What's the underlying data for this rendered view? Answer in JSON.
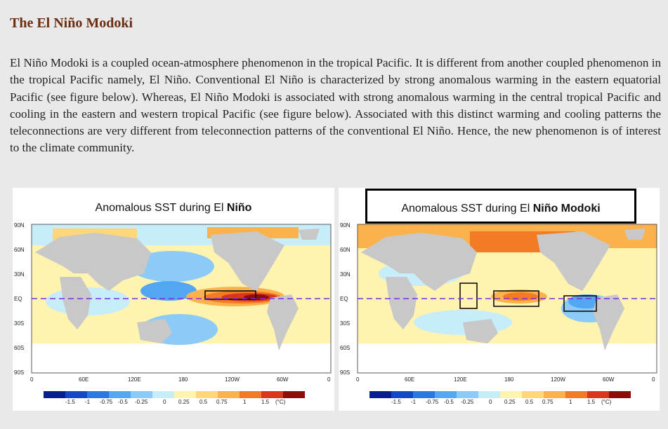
{
  "article": {
    "title": "The El Niño Modoki",
    "paragraph": "El Niño Modoki is a coupled ocean-atmosphere phenomenon in the tropical Pacific. It is different from another coupled phenomenon in the tropical Pacific namely, El Niño. Conventional El Niño is characterized by strong anomalous warming in the eastern equatorial Pacific (see figure below). Whereas, El Niño Modoki is associated with strong anomalous warming in the central tropical Pacific and cooling in the eastern and western tropical Pacific (see figure below). Associated with this distinct warming and cooling patterns the teleconnections are very different from teleconnection patterns of the conventional El Niño. Hence, the new phenomenon is of interest to the climate community."
  },
  "figures": [
    {
      "title_prefix": "Anomalous SST during ",
      "title_bold_plain": "El ",
      "title_bold": "Niño"
    },
    {
      "title_prefix": "Anomalous SST during ",
      "title_bold_plain": "El ",
      "title_bold": "Niño Modoki"
    }
  ],
  "map_axes": {
    "lat_labels": [
      "90N",
      "60N",
      "30N",
      "EQ",
      "30S",
      "60S",
      "90S"
    ],
    "lon_labels": [
      "0",
      "60E",
      "120E",
      "180",
      "120W",
      "60W",
      "0"
    ]
  },
  "colorbar": {
    "labels": [
      "-1.5",
      "-1",
      "-0.75",
      "-0.5",
      "-0.25",
      "0",
      "0.25",
      "0.5",
      "0.75",
      "1",
      "1.5"
    ],
    "unit": "(°C)",
    "colors": [
      "#0a1f8f",
      "#1448c8",
      "#2a78e6",
      "#52a6f2",
      "#8ccbf7",
      "#c7ecfa",
      "#fff3b0",
      "#fdd77a",
      "#fbb24c",
      "#f47b26",
      "#d9361c",
      "#8e0c0c"
    ]
  },
  "colors": {
    "land": "#c8c8c8",
    "equator_line": "#7a2be2",
    "title": "#6b2e10"
  }
}
